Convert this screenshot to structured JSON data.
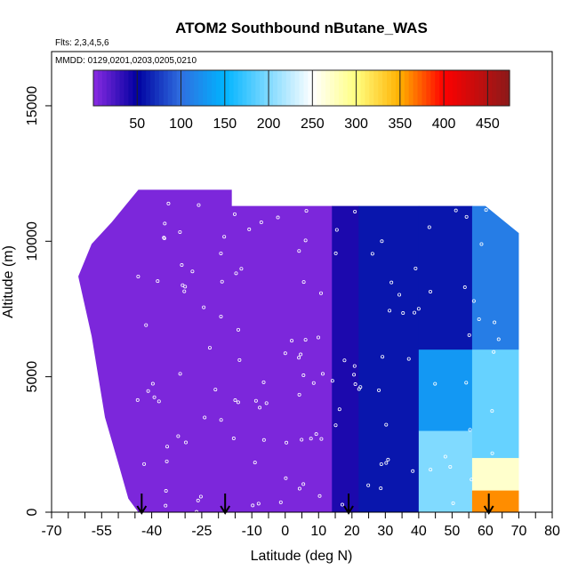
{
  "chart_data": {
    "type": "heatmap",
    "title": "ATOM2 Southbound nButane_WAS",
    "flights_label": "Flts: 2,3,4,5,6",
    "dates_label": "MMDD: 0129,0201,0203,0205,0210",
    "xlabel": "Latitude (deg N)",
    "ylabel": "Altitude (m)",
    "xlim": [
      -70,
      80
    ],
    "ylim": [
      0,
      17000
    ],
    "x_tick_labels": [
      "-70",
      "-55",
      "-40",
      "-25",
      "-10",
      "0",
      "10",
      "20",
      "30",
      "40",
      "50",
      "60",
      "70",
      "80"
    ],
    "x_tick_values": [
      -70,
      -55,
      -40,
      -25,
      -10,
      0,
      10,
      20,
      30,
      40,
      50,
      60,
      70,
      80
    ],
    "x_minor_ticks": [
      -65,
      -60,
      -50,
      -45,
      -35,
      -30,
      -20,
      -15,
      -5,
      5,
      15,
      25,
      35,
      45,
      55,
      65,
      75
    ],
    "y_tick_labels": [
      "0",
      "5000",
      "10000",
      "15000"
    ],
    "y_tick_values": [
      0,
      5000,
      10000,
      15000
    ],
    "colorbar": {
      "range": [
        0,
        475
      ],
      "tick_labels": [
        "50",
        "100",
        "150",
        "200",
        "250",
        "300",
        "350",
        "400",
        "450"
      ],
      "tick_values": [
        50,
        100,
        150,
        200,
        250,
        300,
        350,
        400,
        450
      ],
      "colors": [
        "#8a2be2",
        "#0000a0",
        "#2f6fe0",
        "#00b4ff",
        "#ffffff",
        "#ffff80",
        "#ffb000",
        "#ff0000",
        "#8b1a1a"
      ],
      "color_stops": [
        0,
        50,
        100,
        150,
        250,
        300,
        350,
        400,
        475
      ]
    },
    "arrows_latitude": [
      -43,
      -18,
      19,
      61
    ],
    "profile_top_altitude": [
      {
        "lat": -62,
        "alt": 8700
      },
      {
        "lat": -58,
        "alt": 9900
      },
      {
        "lat": -52,
        "alt": 10700
      },
      {
        "lat": -48,
        "alt": 11300
      },
      {
        "lat": -44,
        "alt": 11900
      },
      {
        "lat": -16,
        "alt": 11900
      },
      {
        "lat": -16,
        "alt": 11300
      },
      {
        "lat": 60,
        "alt": 11300
      },
      {
        "lat": 70,
        "alt": 10300
      }
    ],
    "profile_bottom_altitude": [
      {
        "lat": -62,
        "alt": 8700
      },
      {
        "lat": -58,
        "alt": 6500
      },
      {
        "lat": -54,
        "alt": 3500
      },
      {
        "lat": -50,
        "alt": 1800
      },
      {
        "lat": -47,
        "alt": 500
      },
      {
        "lat": -44,
        "alt": 0
      },
      {
        "lat": 70,
        "alt": 0
      }
    ],
    "field_values": [
      {
        "lat_range": [
          -62,
          14
        ],
        "alt_range": [
          0,
          12000
        ],
        "value": 5
      },
      {
        "lat_range": [
          14,
          22
        ],
        "alt_range": [
          0,
          12000
        ],
        "value": 40
      },
      {
        "lat_range": [
          22,
          40
        ],
        "alt_range": [
          0,
          12000
        ],
        "value": 60
      },
      {
        "lat_range": [
          40,
          56
        ],
        "alt_range": [
          6000,
          12000
        ],
        "value": 60
      },
      {
        "lat_range": [
          40,
          56
        ],
        "alt_range": [
          3000,
          6000
        ],
        "value": 130
      },
      {
        "lat_range": [
          40,
          56
        ],
        "alt_range": [
          0,
          3000
        ],
        "value": 200
      },
      {
        "lat_range": [
          56,
          70
        ],
        "alt_range": [
          6000,
          12000
        ],
        "value": 110
      },
      {
        "lat_range": [
          56,
          70
        ],
        "alt_range": [
          2000,
          6000
        ],
        "value": 190
      },
      {
        "lat_range": [
          56,
          70
        ],
        "alt_range": [
          800,
          2000
        ],
        "value": 270
      },
      {
        "lat_range": [
          56,
          70
        ],
        "alt_range": [
          0,
          800
        ],
        "value": 360
      }
    ]
  }
}
